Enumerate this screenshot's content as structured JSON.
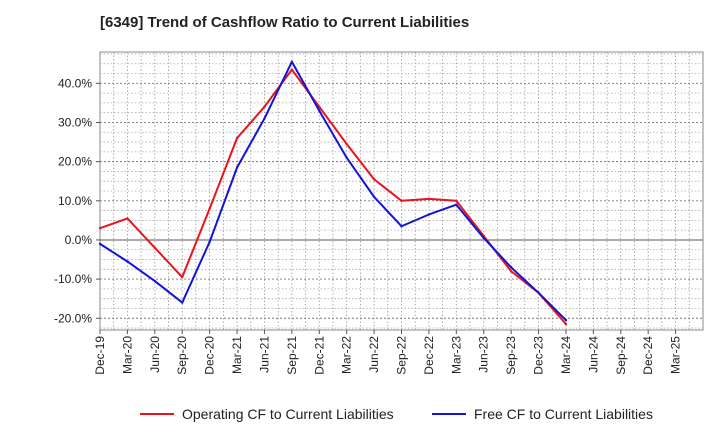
{
  "chart_data": {
    "type": "line",
    "title": "[6349]  Trend of Cashflow Ratio to Current Liabilities",
    "xlabel": "",
    "ylabel": "",
    "categories": [
      "Dec-19",
      "Mar-20",
      "Jun-20",
      "Sep-20",
      "Dec-20",
      "Mar-21",
      "Jun-21",
      "Sep-21",
      "Dec-21",
      "Mar-22",
      "Jun-22",
      "Sep-22",
      "Dec-22",
      "Mar-23",
      "Jun-23",
      "Sep-23",
      "Dec-23",
      "Mar-24",
      "Jun-24",
      "Sep-24",
      "Dec-24",
      "Mar-25"
    ],
    "ylim": [
      -23,
      48
    ],
    "yticks": [
      -20,
      -10,
      0,
      10,
      20,
      30,
      40
    ],
    "ytick_labels": [
      "-20.0%",
      "-10.0%",
      "0.0%",
      "10.0%",
      "20.0%",
      "30.0%",
      "40.0%"
    ],
    "grid": true,
    "legend_position": "bottom",
    "series": [
      {
        "name": "Operating CF to Current Liabilities",
        "color": "#e8141c",
        "values": [
          3.0,
          5.5,
          -2.0,
          -9.5,
          8.0,
          26.0,
          34.0,
          43.5,
          34.0,
          24.5,
          15.5,
          10.0,
          10.5,
          10.0,
          1.0,
          -8.0,
          -13.5,
          -21.5,
          null,
          null,
          null,
          null
        ]
      },
      {
        "name": "Free CF to Current Liabilities",
        "color": "#1414d8",
        "values": [
          -1.0,
          -5.5,
          -10.5,
          -16.0,
          -0.5,
          18.5,
          31.0,
          45.5,
          33.0,
          21.0,
          11.0,
          3.5,
          6.5,
          9.0,
          0.5,
          -7.0,
          -13.5,
          -20.5,
          null,
          null,
          null,
          null
        ]
      }
    ]
  }
}
